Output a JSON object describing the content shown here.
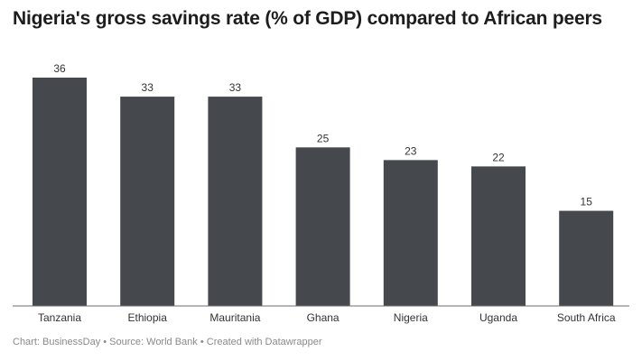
{
  "chart_data": {
    "type": "bar",
    "title": "Nigeria's gross savings rate (% of GDP) compared to African peers",
    "xlabel": "",
    "ylabel": "",
    "categories": [
      "Tanzania",
      "Ethiopia",
      "Mauritania",
      "Ghana",
      "Nigeria",
      "Uganda",
      "South Africa"
    ],
    "values": [
      36,
      33,
      33,
      25,
      23,
      22,
      15
    ],
    "data_labels": [
      "36",
      "33",
      "33",
      "25",
      "23",
      "22",
      "15"
    ],
    "ylim": [
      0,
      36
    ],
    "grid": false,
    "legend": "none",
    "bar_color": "#45484c"
  },
  "footer": {
    "text": "Chart: BusinessDay • Source: World Bank • Created with Datawrapper"
  }
}
